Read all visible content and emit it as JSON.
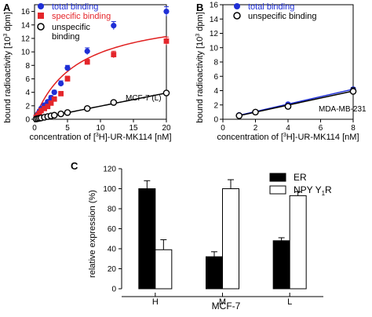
{
  "colors": {
    "total": "#1f2fd6",
    "specific": "#e4262b",
    "fit_red": "#e02020",
    "black": "#000000"
  },
  "chart_data": [
    {
      "panel_label": "A",
      "type": "scatter",
      "xlabel_parts": [
        "concentration of [",
        "3",
        "H]-UR-MK114 [nM]"
      ],
      "ylabel_parts": [
        "bound radioactivity [10",
        "3",
        " dpm]"
      ],
      "xlim": [
        0,
        20
      ],
      "ylim": [
        0,
        17
      ],
      "xticks": [
        0,
        5,
        10,
        15,
        20
      ],
      "yticks": [
        0,
        2,
        4,
        6,
        8,
        10,
        12,
        14,
        16
      ],
      "annotation": "MCF-7 (L)",
      "legend_position": "top-left",
      "series": [
        {
          "name": "total binding",
          "marker": "filled-circle",
          "color": "#1f2fd6",
          "x": [
            0.25,
            0.5,
            0.75,
            1,
            1.5,
            2,
            2.5,
            3,
            4,
            5,
            8,
            12,
            20
          ],
          "y": [
            0.4,
            0.8,
            1.2,
            1.6,
            2.1,
            2.6,
            3.2,
            4.0,
            5.3,
            7.6,
            10.1,
            13.9,
            16.0
          ],
          "err": [
            0.1,
            0.1,
            0.15,
            0.2,
            0.2,
            0.25,
            0.3,
            0.3,
            0.4,
            0.4,
            0.5,
            0.6,
            0.7
          ]
        },
        {
          "name": "specific binding",
          "marker": "filled-square",
          "color": "#e4262b",
          "x": [
            0.25,
            0.5,
            0.75,
            1,
            1.5,
            2,
            2.5,
            3,
            4,
            5,
            8,
            12,
            20
          ],
          "y": [
            0.3,
            0.6,
            0.9,
            1.3,
            1.6,
            1.9,
            2.4,
            3.0,
            3.8,
            6.0,
            8.5,
            9.6,
            11.6
          ],
          "err": [
            0.1,
            0.1,
            0.15,
            0.15,
            0.2,
            0.2,
            0.25,
            0.3,
            0.3,
            0.4,
            0.4,
            0.5,
            0.6
          ]
        },
        {
          "name": "unspecific binding",
          "legend_lines": [
            "unspecific",
            "binding"
          ],
          "marker": "open-circle",
          "color": "#000000",
          "x": [
            0.25,
            0.5,
            0.75,
            1,
            1.5,
            2,
            2.5,
            3,
            4,
            5,
            8,
            12,
            20
          ],
          "y": [
            0.05,
            0.1,
            0.15,
            0.2,
            0.3,
            0.4,
            0.5,
            0.6,
            0.8,
            1.0,
            1.6,
            2.5,
            3.9
          ],
          "err": [
            0.05,
            0.05,
            0.05,
            0.05,
            0.05,
            0.05,
            0.1,
            0.1,
            0.1,
            0.1,
            0.15,
            0.2,
            0.25
          ]
        }
      ]
    },
    {
      "panel_label": "B",
      "type": "scatter",
      "xlabel_parts": [
        "concentration of [",
        "3",
        "H]-UR-MK114 [nM]"
      ],
      "ylabel_parts": [
        "bound radioactivity [10",
        "3",
        " dpm]"
      ],
      "xlim": [
        0,
        8
      ],
      "ylim": [
        0,
        16
      ],
      "xticks": [
        0,
        2,
        4,
        6,
        8
      ],
      "yticks": [
        0,
        2,
        4,
        6,
        8,
        10,
        12,
        14,
        16
      ],
      "annotation": "MDA-MB-231",
      "legend_position": "top-left",
      "series": [
        {
          "name": "total binding",
          "marker": "filled-circle",
          "color": "#1f2fd6",
          "x": [
            1,
            2,
            4,
            8
          ],
          "y": [
            0.6,
            1.0,
            2.1,
            4.2
          ],
          "err": [
            0.1,
            0.1,
            0.15,
            0.2
          ]
        },
        {
          "name": "unspecific binding",
          "marker": "open-circle",
          "color": "#000000",
          "x": [
            1,
            2,
            4,
            8
          ],
          "y": [
            0.5,
            1.0,
            1.8,
            3.9
          ],
          "err": [
            0.1,
            0.1,
            0.15,
            0.5
          ]
        }
      ]
    },
    {
      "panel_label": "C",
      "type": "bar",
      "ylabel": "relative expression (%)",
      "ylim": [
        0,
        120
      ],
      "yticks": [
        0,
        20,
        40,
        60,
        80,
        100,
        120
      ],
      "categories": [
        "H",
        "M",
        "L"
      ],
      "group_label": "MCF-7",
      "legend_position": "top-right",
      "series": [
        {
          "name_parts": [
            "ER"
          ],
          "fill": "#000000",
          "values": [
            100,
            32,
            48
          ],
          "err": [
            8,
            5,
            3
          ]
        },
        {
          "name_parts": [
            "NPY Y",
            "1",
            "R"
          ],
          "fill": "#ffffff",
          "values": [
            39,
            100,
            93
          ],
          "err": [
            10,
            9,
            4
          ]
        }
      ]
    }
  ]
}
